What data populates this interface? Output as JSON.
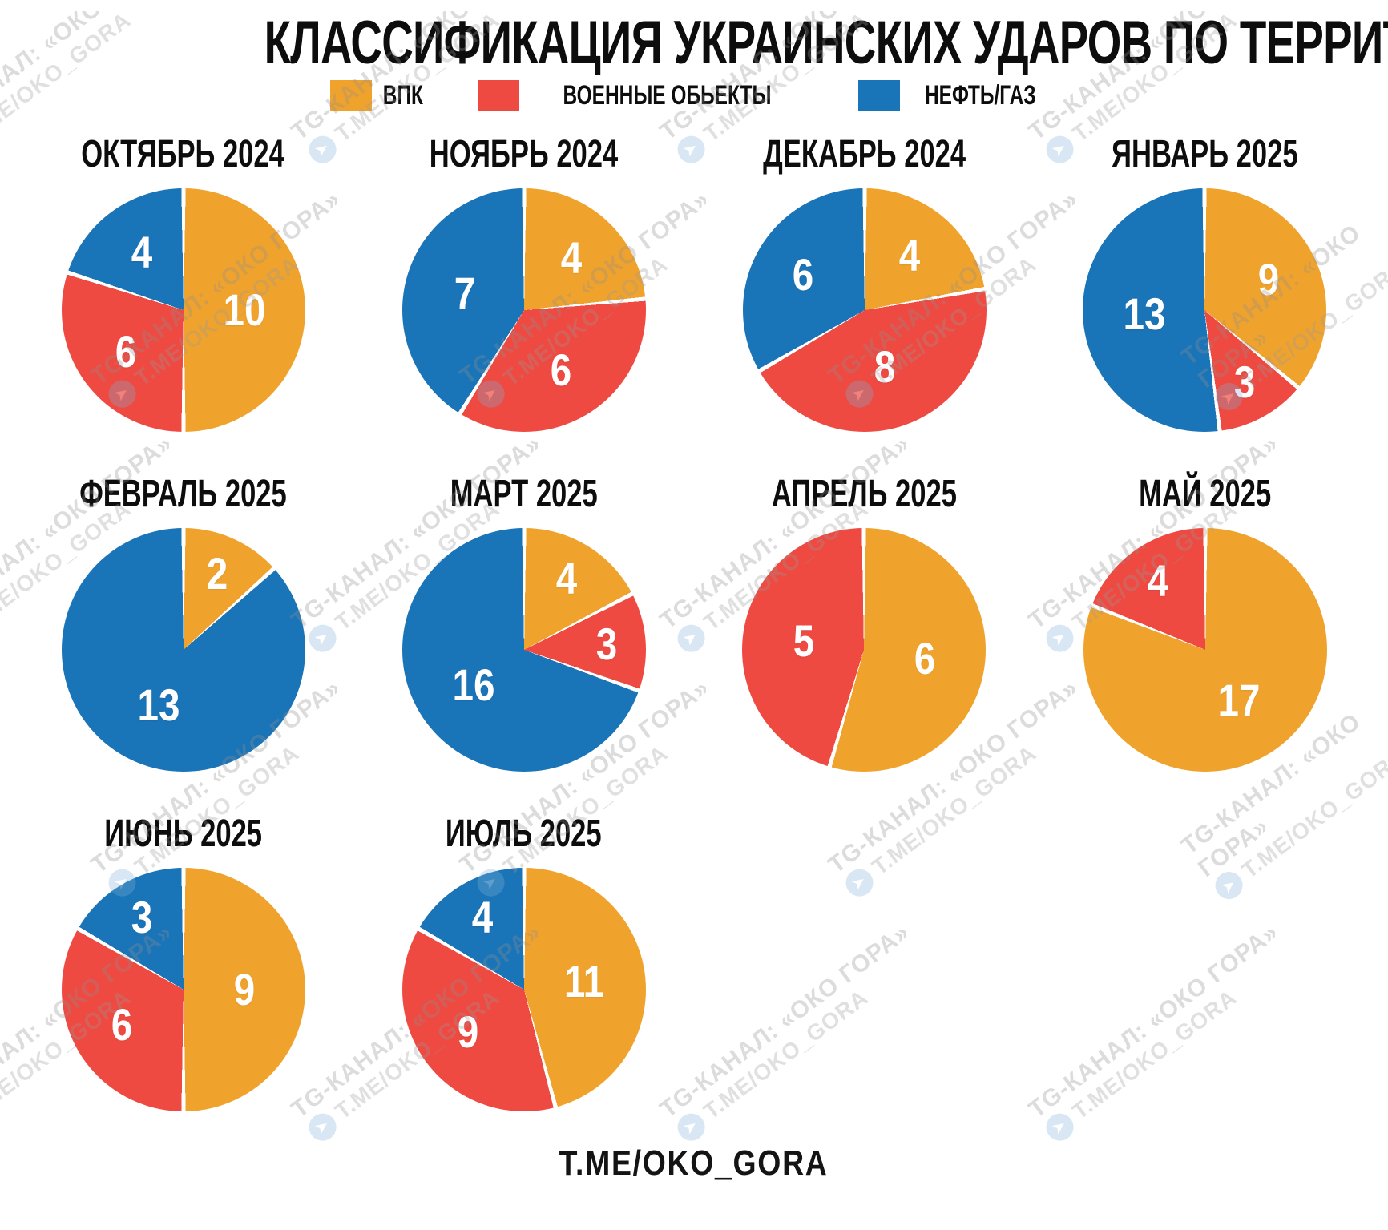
{
  "title": "КЛАССИФИКАЦИЯ  УКРАИНСКИХ УДАРОВ ПО ТЕРРИТОРИИ РФ:",
  "legend": {
    "items": [
      {
        "label": "ВПК",
        "color": "#F0A32C"
      },
      {
        "label": "ВОЕННЫЕ ОБЬЕКТЫ",
        "color": "#EE4A42"
      },
      {
        "label": "НЕФТЬ/ГАЗ",
        "color": "#1A74B8"
      }
    ]
  },
  "footer": {
    "handle": "T.ME/OKO_GORA"
  },
  "watermark": {
    "channel": "TG-КАНАЛ: «ОКО ГОРА»",
    "handle": "T.ME/OKO_GORA",
    "icon": "telegram-plane-icon"
  },
  "chart_data": {
    "type": "pie",
    "title": "КЛАССИФИКАЦИЯ УКРАИНСКИХ УДАРОВ ПО ТЕРРИТОРИИ РФ",
    "categories": [
      "ВПК",
      "ВОЕННЫЕ ОБЬЕКТЫ",
      "НЕФТЬ/ГАЗ"
    ],
    "colors": [
      "#F0A32C",
      "#EE4A42",
      "#1A74B8"
    ],
    "slice_order": "clockwise from 12 o'clock, category order",
    "months": [
      {
        "label": "ОКТЯБРЬ 2024",
        "values": [
          10,
          6,
          4
        ]
      },
      {
        "label": "НОЯБРЬ 2024",
        "values": [
          4,
          6,
          7
        ]
      },
      {
        "label": "ДЕКАБРЬ 2024",
        "values": [
          4,
          8,
          6
        ]
      },
      {
        "label": "ЯНВАРЬ 2025",
        "values": [
          9,
          3,
          13
        ]
      },
      {
        "label": "ФЕВРАЛЬ 2025",
        "values": [
          2,
          0,
          13
        ]
      },
      {
        "label": "МАРТ 2025",
        "values": [
          4,
          3,
          16
        ]
      },
      {
        "label": "АПРЕЛЬ 2025",
        "values": [
          6,
          5,
          0
        ]
      },
      {
        "label": "МАЙ 2025",
        "values": [
          17,
          4,
          0
        ]
      },
      {
        "label": "ИЮНЬ 2025",
        "values": [
          9,
          6,
          3
        ]
      },
      {
        "label": "ИЮЛЬ 2025",
        "values": [
          11,
          9,
          4
        ]
      }
    ]
  }
}
